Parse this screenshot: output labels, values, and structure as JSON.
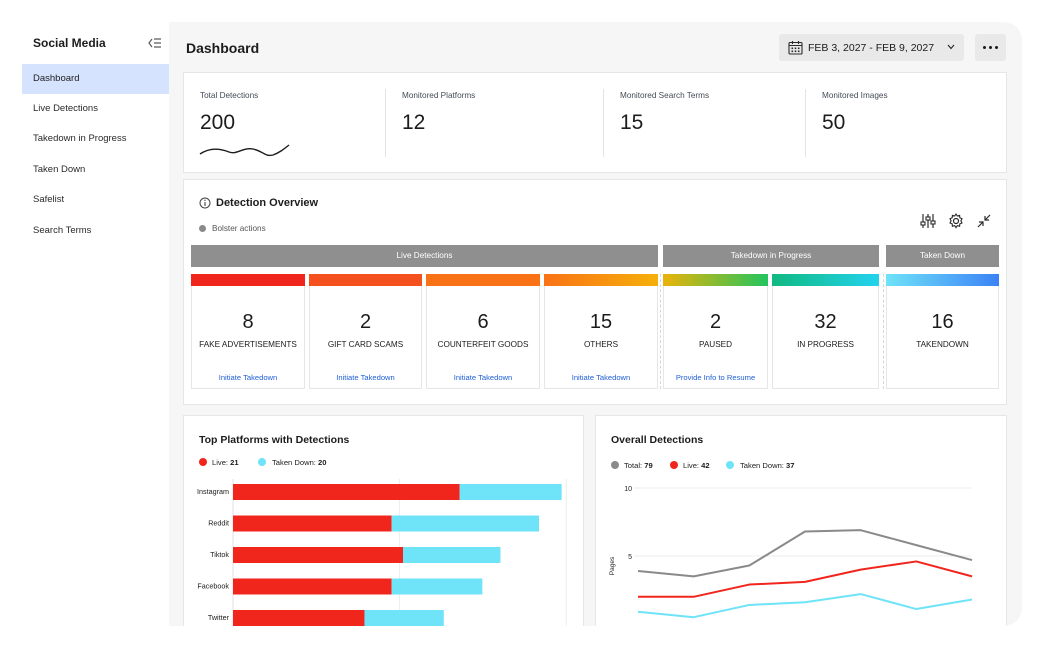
{
  "sidebar": {
    "title": "Social Media",
    "items": [
      {
        "label": "Dashboard",
        "active": true
      },
      {
        "label": "Live Detections"
      },
      {
        "label": "Takedown in Progress"
      },
      {
        "label": "Taken Down"
      },
      {
        "label": "Safelist"
      },
      {
        "label": "Search Terms"
      }
    ]
  },
  "header": {
    "title": "Dashboard",
    "date_range": "FEB 3, 2027 - FEB 9, 2027"
  },
  "kpis": [
    {
      "label": "Total Detections",
      "value": "200"
    },
    {
      "label": "Monitored Platforms",
      "value": "12"
    },
    {
      "label": "Monitored Search Terms",
      "value": "15"
    },
    {
      "label": "Monitored Images",
      "value": "50"
    }
  ],
  "overview": {
    "title": "Detection Overview",
    "legend": "Bolster actions",
    "groups": [
      "Live Detections",
      "Takedown in Progress",
      "Taken Down"
    ],
    "tiles": [
      {
        "value": "8",
        "caption": "FAKE ADVERTISEMENTS",
        "action": "Initiate Takedown"
      },
      {
        "value": "2",
        "caption": "GIFT CARD SCAMS",
        "action": "Initiate Takedown"
      },
      {
        "value": "6",
        "caption": "COUNTERFEIT GOODS",
        "action": "Initiate Takedown"
      },
      {
        "value": "15",
        "caption": "OTHERS",
        "action": "Initiate Takedown"
      },
      {
        "value": "2",
        "caption": "PAUSED",
        "action": "Provide Info to Resume"
      },
      {
        "value": "32",
        "caption": "IN PROGRESS",
        "action": ""
      },
      {
        "value": "16",
        "caption": "TAKENDOWN",
        "action": ""
      }
    ],
    "colors": {
      "red": "#f0261d",
      "orange_red": "#f4511e",
      "orange": "#f97316",
      "amber": "#f59e0b",
      "green": "#22c55e",
      "teal": "#10b981",
      "cyan": "#22d3ee",
      "blue": "#3b82f6"
    }
  },
  "platforms_chart": {
    "title": "Top Platforms with Detections",
    "legend": [
      {
        "name": "Live:",
        "total": "21",
        "color": "#f0261d"
      },
      {
        "name": "Taken Down:",
        "total": "20",
        "color": "#6fe3f8"
      }
    ],
    "chart_data": {
      "type": "bar",
      "orientation": "horizontal",
      "stacked": true,
      "categories": [
        "Instagram",
        "Reddit",
        "Tiktok",
        "Facebook",
        "Twitter"
      ],
      "series": [
        {
          "name": "Live",
          "values": [
            10,
            7,
            7.5,
            7,
            5.8
          ]
        },
        {
          "name": "Taken Down",
          "values": [
            4.5,
            6.5,
            4.3,
            4,
            3.5
          ]
        }
      ],
      "xlim": [
        0,
        15
      ]
    }
  },
  "overall_chart": {
    "title": "Overall Detections",
    "legend": [
      {
        "name": "Total:",
        "total": "79",
        "color": "#8a8a8a"
      },
      {
        "name": "Live:",
        "total": "42",
        "color": "#f0261d"
      },
      {
        "name": "Taken Down:",
        "total": "37",
        "color": "#6fe3f8"
      }
    ],
    "ylabel": "Pages",
    "yticks": [
      "10",
      "5"
    ],
    "chart_data": {
      "type": "line",
      "x": [
        1,
        2,
        3,
        4,
        5,
        6,
        7
      ],
      "ylim": [
        0,
        10
      ],
      "series": [
        {
          "name": "Total",
          "color": "#8a8a8a",
          "values": [
            3.9,
            3.5,
            4.3,
            6.8,
            6.9,
            5.8,
            4.7
          ]
        },
        {
          "name": "Live",
          "color": "#f0261d",
          "values": [
            2.0,
            2.0,
            2.9,
            3.1,
            4.0,
            4.6,
            3.5
          ]
        },
        {
          "name": "Taken Down",
          "color": "#6fe3f8",
          "values": [
            0.9,
            0.5,
            1.4,
            1.6,
            2.2,
            1.1,
            1.8
          ]
        }
      ]
    }
  }
}
